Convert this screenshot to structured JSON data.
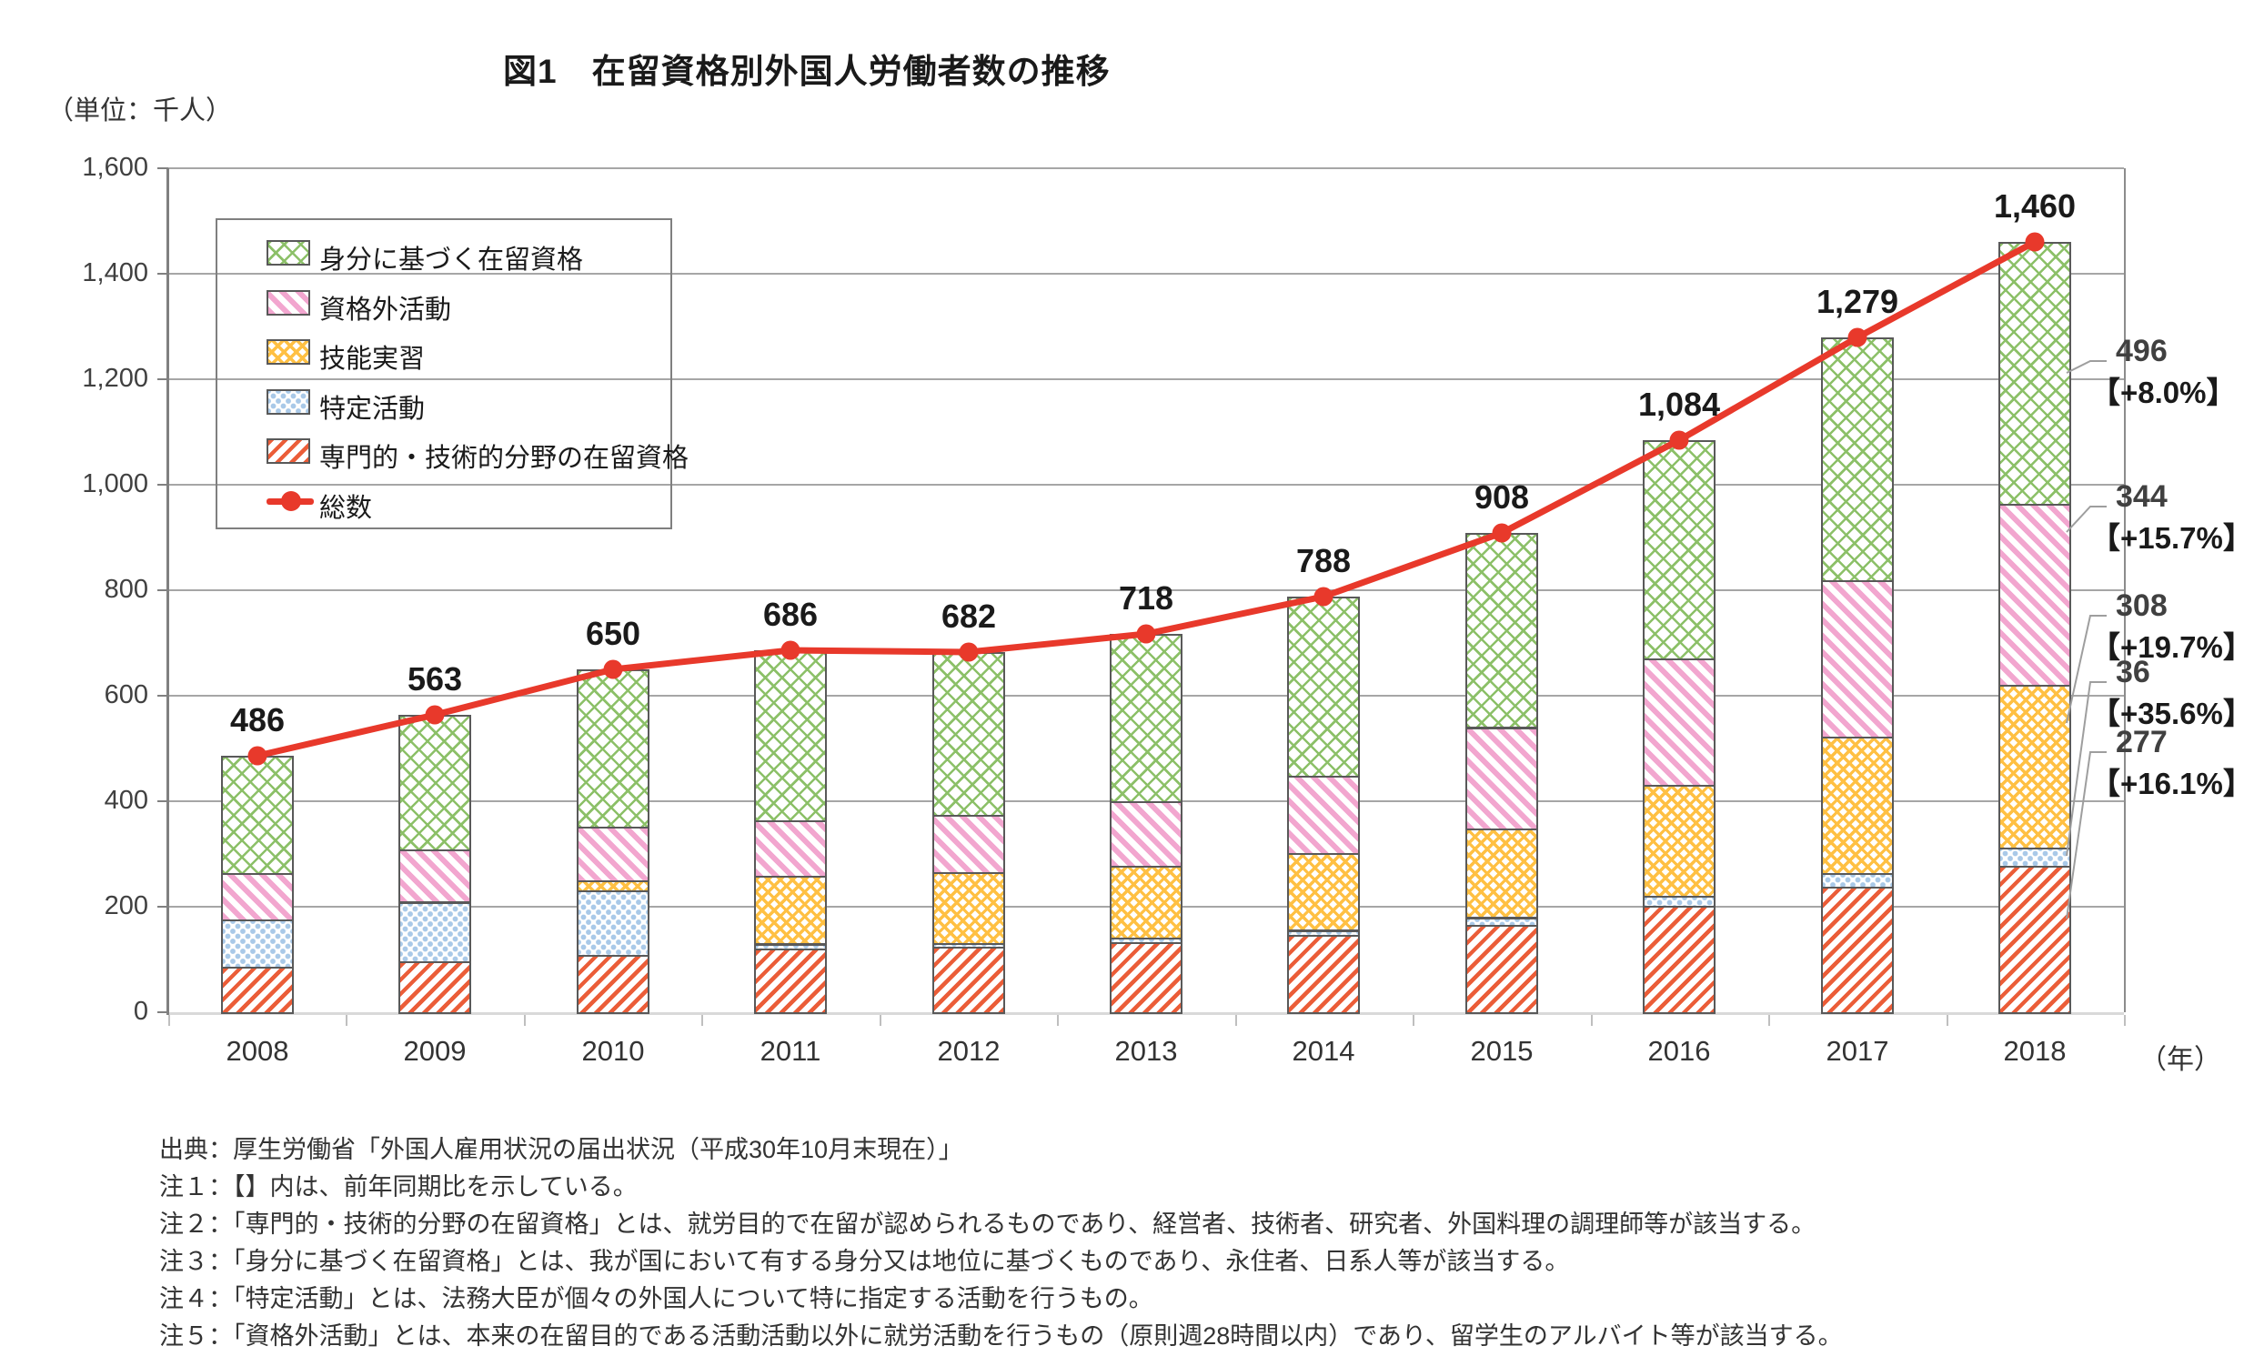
{
  "title": "図1　在留資格別外国人労働者数の推移",
  "unit_label": "（単位：千人）",
  "y_axis": {
    "tick_labels": [
      "0",
      "200",
      "400",
      "600",
      "800",
      "1,000",
      "1,200",
      "1,400",
      "1,600"
    ],
    "max": 1600,
    "step": 200
  },
  "x_axis": {
    "years": [
      "2008",
      "2009",
      "2010",
      "2011",
      "2012",
      "2013",
      "2014",
      "2015",
      "2016",
      "2017",
      "2018"
    ],
    "suffix": "（年）"
  },
  "legend": [
    {
      "key": "green",
      "label": "身分に基づく在留資格"
    },
    {
      "key": "pink",
      "label": "資格外活動"
    },
    {
      "key": "yellow",
      "label": "技能実習"
    },
    {
      "key": "blue",
      "label": "特定活動"
    },
    {
      "key": "red",
      "label": "専門的・技術的分野の在留資格"
    },
    {
      "key": "line",
      "label": "総数"
    }
  ],
  "chart_data": {
    "type": "bar",
    "subtype": "stacked-bars-with-total-line",
    "categories": [
      "2008",
      "2009",
      "2010",
      "2011",
      "2012",
      "2013",
      "2014",
      "2015",
      "2016",
      "2017",
      "2018"
    ],
    "series": [
      {
        "key": "red",
        "name": "専門的・技術的分野の在留資格",
        "values": [
          86,
          97,
          109,
          121,
          124,
          133,
          147,
          167,
          201,
          238,
          277
        ]
      },
      {
        "key": "blue",
        "name": "特定活動",
        "values": [
          90,
          112,
          122,
          9,
          8,
          8,
          9,
          13,
          19,
          26,
          36
        ]
      },
      {
        "key": "yellow",
        "name": "技能実習",
        "values": [
          0,
          0,
          19,
          128,
          134,
          137,
          145,
          168,
          211,
          258,
          308
        ]
      },
      {
        "key": "pink",
        "name": "資格外活動",
        "values": [
          88,
          99,
          102,
          106,
          108,
          122,
          147,
          192,
          240,
          297,
          344
        ]
      },
      {
        "key": "green",
        "name": "身分に基づく在留資格",
        "values": [
          222,
          255,
          298,
          322,
          308,
          318,
          340,
          368,
          413,
          460,
          496
        ]
      }
    ],
    "line_series": {
      "name": "総数",
      "values": [
        486,
        563,
        650,
        686,
        682,
        718,
        788,
        908,
        1084,
        1279,
        1460
      ]
    },
    "total_labels": [
      "486",
      "563",
      "650",
      "686",
      "682",
      "718",
      "788",
      "908",
      "1,084",
      "1,279",
      "1,460"
    ],
    "title": "図1　在留資格別外国人労働者数の推移",
    "ylabel": "（単位：千人）",
    "ylim": [
      0,
      1600
    ],
    "grid": true,
    "legend_position": "upper-left-inside"
  },
  "callouts": [
    {
      "series": "green",
      "value": "496",
      "pct": "【+8.0%】"
    },
    {
      "series": "pink",
      "value": "344",
      "pct": "【+15.7%】"
    },
    {
      "series": "yellow",
      "value": "308",
      "pct": "【+19.7%】"
    },
    {
      "series": "blue",
      "value": "36",
      "pct": "【+35.6%】"
    },
    {
      "series": "red",
      "value": "277",
      "pct": "【+16.1%】"
    }
  ],
  "notes": [
    "出典：厚生労働省「外国人雇用状況の届出状況（平成30年10月末現在）」",
    "注１：【】内は、前年同期比を示している。",
    "注２：「専門的・技術的分野の在留資格」とは、就労目的で在留が認められるものであり、経営者、技術者、研究者、外国料理の調理師等が該当する。",
    "注３：「身分に基づく在留資格」とは、我が国において有する身分又は地位に基づくものであり、永住者、日系人等が該当する。",
    "注４：「特定活動」とは、法務大臣が個々の外国人について特に指定する活動を行うもの。",
    "注５：「資格外活動」とは、本来の在留目的である活動活動以外に就労活動を行うもの（原則週28時間以内）であり、留学生のアルバイト等が該当する。"
  ],
  "colors": {
    "total_line": "#e8392b",
    "green": "#8cc068",
    "pink": "#f2a6cf",
    "yellow": "#ffc043",
    "blue": "#a9c9e8",
    "red": "#eb5d38",
    "segment_border": "#595959",
    "grid": "#a6a6a6"
  }
}
